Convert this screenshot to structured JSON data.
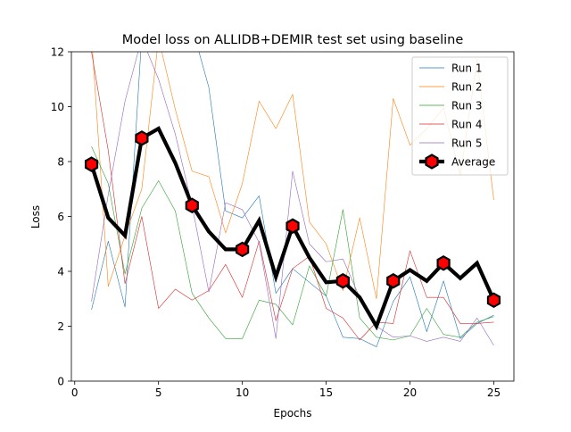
{
  "chart_data": {
    "type": "line",
    "title": "Model loss on ALLIDB+DEMIR test set using baseline",
    "xlabel": "Epochs",
    "ylabel": "Loss",
    "xlim": [
      -0.2,
      26.2
    ],
    "ylim": [
      0,
      12
    ],
    "xticks": [
      0,
      5,
      10,
      15,
      20,
      25
    ],
    "yticks": [
      0,
      2,
      4,
      6,
      8,
      10,
      12
    ],
    "grid": false,
    "legend_position": "top-right",
    "x": [
      1,
      2,
      3,
      4,
      5,
      6,
      7,
      8,
      9,
      10,
      11,
      12,
      13,
      14,
      15,
      16,
      17,
      18,
      19,
      20,
      21,
      22,
      23,
      24,
      25
    ],
    "series": [
      {
        "name": "Run 1",
        "color": "#1f77b4",
        "values": [
          2.6,
          5.1,
          2.7,
          12.6,
          13.5,
          12.9,
          12.9,
          10.7,
          6.2,
          5.95,
          6.75,
          3.2,
          4.1,
          3.6,
          3.1,
          1.6,
          1.55,
          1.25,
          2.9,
          3.8,
          1.8,
          3.65,
          1.55,
          2.1,
          2.4
        ]
      },
      {
        "name": "Run 2",
        "color": "#ff7f0e",
        "values": [
          12.6,
          3.45,
          5.3,
          7.0,
          12.5,
          9.9,
          7.65,
          7.45,
          5.4,
          7.2,
          10.2,
          9.2,
          10.45,
          5.8,
          5.0,
          3.3,
          5.95,
          3.0,
          10.3,
          8.6,
          9.2,
          9.95,
          7.5,
          11.7,
          6.6
        ]
      },
      {
        "name": "Run 3",
        "color": "#2ca02c",
        "values": [
          8.55,
          7.2,
          3.9,
          6.3,
          7.3,
          6.2,
          3.2,
          2.3,
          1.55,
          1.55,
          2.95,
          2.8,
          2.05,
          4.2,
          3.1,
          6.25,
          2.3,
          1.6,
          1.5,
          1.65,
          2.65,
          1.7,
          1.6,
          2.15,
          2.35
        ]
      },
      {
        "name": "Run 4",
        "color": "#d62728",
        "values": [
          12.0,
          8.4,
          3.55,
          6.0,
          2.65,
          3.35,
          2.95,
          3.3,
          4.25,
          3.05,
          5.1,
          2.2,
          4.1,
          4.55,
          2.65,
          2.3,
          1.5,
          2.15,
          2.1,
          4.75,
          3.05,
          3.05,
          2.1,
          2.1,
          2.15
        ]
      },
      {
        "name": "Run 5",
        "color": "#9467bd",
        "values": [
          2.9,
          6.8,
          10.2,
          12.5,
          11.0,
          9.0,
          6.4,
          3.25,
          6.5,
          6.25,
          5.05,
          1.55,
          7.65,
          5.0,
          4.35,
          4.45,
          3.05,
          2.0,
          1.6,
          1.65,
          1.45,
          1.6,
          1.45,
          2.3,
          1.3
        ]
      },
      {
        "name": "Average",
        "color": "#000000",
        "marker": "hexagon",
        "marker_color": "#ff0000",
        "values": [
          7.9,
          5.95,
          5.3,
          8.85,
          9.2,
          7.95,
          6.4,
          5.45,
          4.8,
          4.8,
          5.85,
          3.8,
          5.65,
          4.5,
          3.6,
          3.65,
          3.05,
          2.0,
          3.65,
          4.05,
          3.65,
          4.3,
          3.75,
          4.3,
          2.95
        ]
      }
    ]
  }
}
